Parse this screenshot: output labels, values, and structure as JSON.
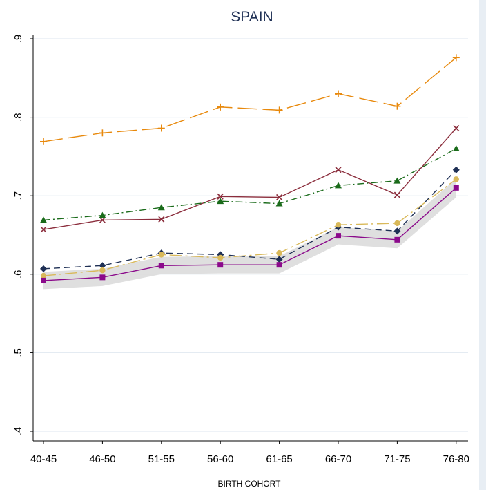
{
  "chart_data": {
    "type": "line",
    "title": "SPAIN",
    "xlabel": "BIRTH COHORT",
    "ylabel": "",
    "categories": [
      "40-45",
      "46-50",
      "51-55",
      "56-60",
      "61-65",
      "66-70",
      "71-75",
      "76-80"
    ],
    "ylim": [
      0.4,
      0.9
    ],
    "yticks": [
      0.4,
      0.5,
      0.6,
      0.7,
      0.8,
      0.9
    ],
    "ytick_labels": [
      ".4",
      ".5",
      ".6",
      ".7",
      ".8",
      ".9"
    ],
    "grid": true,
    "legend": "none",
    "series": [
      {
        "marker": "plus",
        "color": "#e8890c",
        "dash": "long-dash",
        "values": [
          0.769,
          0.78,
          0.786,
          0.813,
          0.809,
          0.83,
          0.814,
          0.876
        ]
      },
      {
        "marker": "x",
        "color": "#8b2d3c",
        "dash": "solid",
        "values": [
          0.657,
          0.669,
          0.67,
          0.699,
          0.698,
          0.733,
          0.701,
          0.786
        ]
      },
      {
        "marker": "triangle",
        "color": "#1a6b1a",
        "dash": "dash-dot",
        "values": [
          0.669,
          0.675,
          0.685,
          0.693,
          0.69,
          0.713,
          0.719,
          0.76
        ]
      },
      {
        "marker": "diamond",
        "color": "#1f3055",
        "dash": "dash",
        "values": [
          0.607,
          0.611,
          0.627,
          0.625,
          0.619,
          0.66,
          0.655,
          0.733
        ]
      },
      {
        "marker": "circle",
        "color": "#d9b95a",
        "dash": "long-dash-dot",
        "values": [
          0.598,
          0.605,
          0.625,
          0.621,
          0.627,
          0.663,
          0.665,
          0.721
        ]
      },
      {
        "marker": "square",
        "color": "#8b0a8b",
        "dash": "solid",
        "band": [
          0.011,
          0.011,
          0.011,
          0.011,
          0.011,
          0.011,
          0.011,
          0.012
        ],
        "band_color": "#d9d9d9",
        "values": [
          0.592,
          0.596,
          0.611,
          0.612,
          0.612,
          0.649,
          0.644,
          0.71
        ]
      }
    ]
  }
}
